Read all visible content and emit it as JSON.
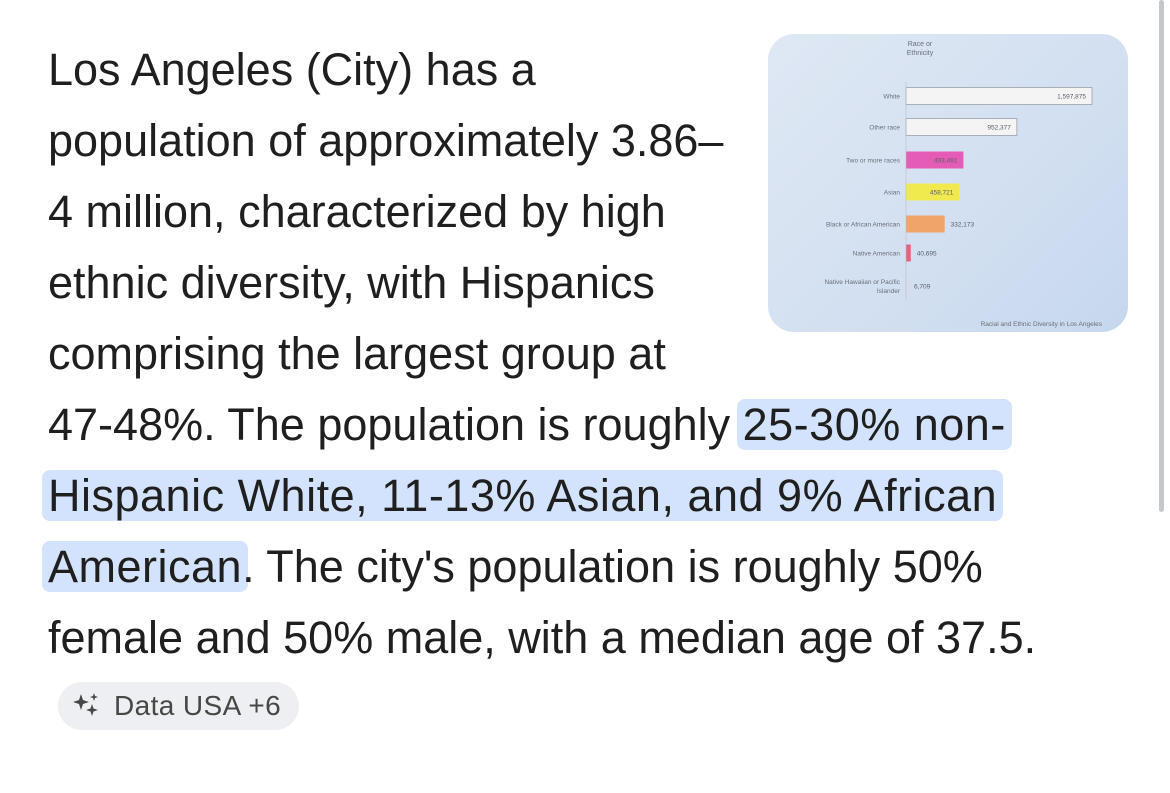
{
  "answer": {
    "p1": "Los Angeles (City) has a population of approximately 3.86–4 million, characterized by high ethnic diversity, with Hispanics comprising the largest group at 47-48%. The population is roughly ",
    "highlight": "25-30% non-Hispanic White, 11-13% Asian, and 9% African American",
    "p2": ". The city's population is roughly 50% female and 50% male, with a median age of 37.5."
  },
  "source_chip": {
    "label": "Data USA +6",
    "icon": "sparkle-icon"
  },
  "thumbnail": {
    "chart_data": {
      "type": "bar",
      "orientation": "horizontal",
      "title": "Race or Ethnicity",
      "caption": "Racial and Ethnic Diversity in Los Angeles",
      "categories": [
        "White",
        "Other race",
        "Two or more races",
        "Asian",
        "Black or African American",
        "Native American",
        "Native Hawaiian or Pacific Islander"
      ],
      "label_lines": [
        [
          "White"
        ],
        [
          "Other race"
        ],
        [
          "Two or more races"
        ],
        [
          "Asian"
        ],
        [
          "Black or African American"
        ],
        [
          "Native American"
        ],
        [
          "Native Hawaiian or Pacific",
          "Islander"
        ]
      ],
      "values": [
        1597875,
        952377,
        493491,
        458721,
        332173,
        40695,
        6709
      ],
      "value_labels": [
        "1,597,875",
        "952,377",
        "493,491",
        "458,721",
        "332,173",
        "40,695",
        "6,709"
      ],
      "colors": [
        "#f4f4f4",
        "#f4f4f4",
        "#e45cb6",
        "#f0ea4e",
        "#f0a46a",
        "#e8607a",
        "#d8dce6"
      ],
      "xlim": [
        0,
        1597875
      ]
    }
  }
}
